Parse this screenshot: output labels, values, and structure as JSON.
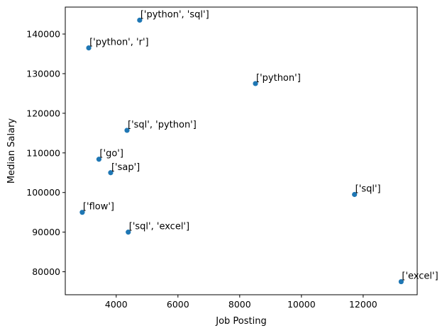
{
  "chart_data": {
    "type": "scatter",
    "title": "",
    "xlabel": "Job Posting",
    "ylabel": "Median Salary",
    "xlim": [
      2350,
      13750
    ],
    "ylim": [
      74200,
      146800
    ],
    "xticks": [
      4000,
      6000,
      8000,
      10000,
      12000
    ],
    "yticks": [
      80000,
      90000,
      100000,
      110000,
      120000,
      130000,
      140000
    ],
    "grid": false,
    "legend": "none",
    "point_color": "#1f77b4",
    "points": [
      {
        "x": 4760,
        "y": 143500,
        "label": "['python', 'sql']"
      },
      {
        "x": 3110,
        "y": 136500,
        "label": "['python', 'r']"
      },
      {
        "x": 8510,
        "y": 127500,
        "label": "['python']"
      },
      {
        "x": 4350,
        "y": 115700,
        "label": "['sql', 'python']"
      },
      {
        "x": 3440,
        "y": 108400,
        "label": "['go']"
      },
      {
        "x": 3820,
        "y": 105000,
        "label": "['sap']"
      },
      {
        "x": 11720,
        "y": 99500,
        "label": "['sql']"
      },
      {
        "x": 2900,
        "y": 95000,
        "label": "['flow']"
      },
      {
        "x": 4390,
        "y": 90000,
        "label": "['sql', 'excel']"
      },
      {
        "x": 13230,
        "y": 77500,
        "label": "['excel']"
      }
    ]
  }
}
